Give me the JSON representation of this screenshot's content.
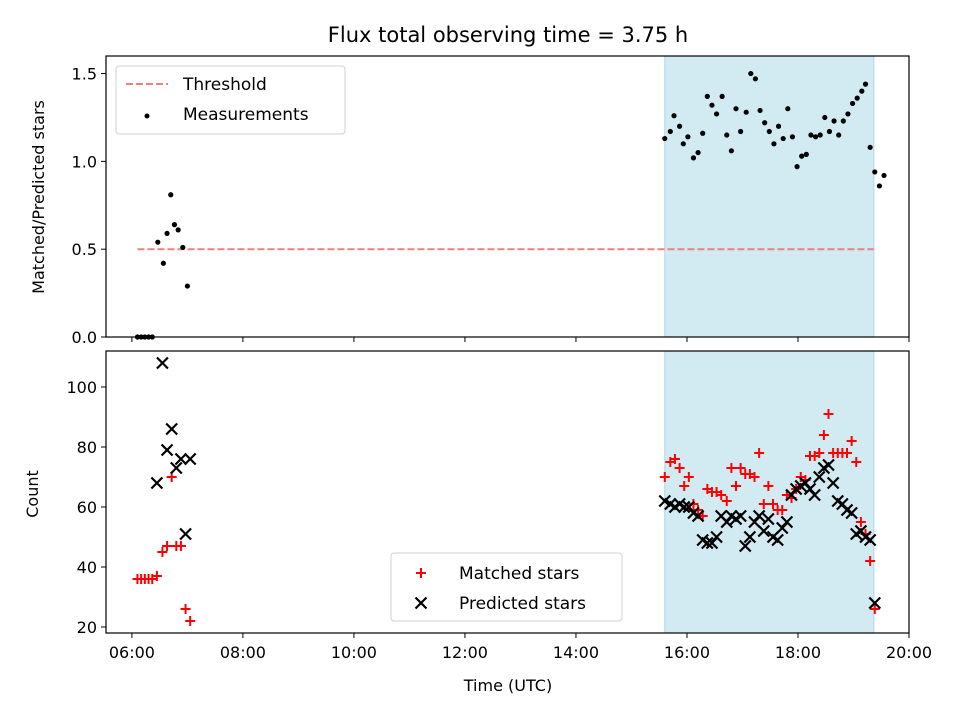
{
  "title": "Flux total observing time = 3.75 h",
  "colors": {
    "shade": "#add8e6",
    "threshold": "#f08080",
    "matched": "#ff0000",
    "predicted": "#000000"
  },
  "chart_data": [
    {
      "type": "scatter",
      "ylabel": "Matched/Predicted stars",
      "xlim": [
        "05:32",
        "20:00"
      ],
      "ylim": [
        0,
        1.6
      ],
      "yticks": [
        "0.0",
        "0.5",
        "1.0",
        "1.5"
      ],
      "shaded_region": [
        "15:36",
        "19:22"
      ],
      "legend": {
        "location": "upper-left",
        "threshold_label": "Threshold",
        "measurements_label": "Measurements"
      },
      "threshold": {
        "name": "Threshold",
        "value": 0.5,
        "x": [
          "06:06",
          "19:22"
        ]
      },
      "series": [
        {
          "name": "Measurements",
          "points": [
            [
              "06:06",
              0
            ],
            [
              "06:10",
              0
            ],
            [
              "06:14",
              0
            ],
            [
              "06:18",
              0
            ],
            [
              "06:22",
              0
            ],
            [
              "06:28",
              0.54
            ],
            [
              "06:34",
              0.42
            ],
            [
              "06:38",
              0.59
            ],
            [
              "06:42",
              0.81
            ],
            [
              "06:46",
              0.64
            ],
            [
              "06:50",
              0.61
            ],
            [
              "06:55",
              0.51
            ],
            [
              "07:00",
              0.29
            ],
            [
              "15:36",
              1.13
            ],
            [
              "15:42",
              1.17
            ],
            [
              "15:46",
              1.26
            ],
            [
              "15:52",
              1.2
            ],
            [
              "15:56",
              1.1
            ],
            [
              "16:01",
              1.14
            ],
            [
              "16:07",
              1.02
            ],
            [
              "16:12",
              1.05
            ],
            [
              "16:17",
              1.16
            ],
            [
              "16:22",
              1.37
            ],
            [
              "16:27",
              1.32
            ],
            [
              "16:32",
              1.27
            ],
            [
              "16:38",
              1.37
            ],
            [
              "16:43",
              1.15
            ],
            [
              "16:48",
              1.06
            ],
            [
              "16:53",
              1.3
            ],
            [
              "16:58",
              1.17
            ],
            [
              "17:04",
              1.28
            ],
            [
              "17:09",
              1.5
            ],
            [
              "17:14",
              1.47
            ],
            [
              "17:19",
              1.29
            ],
            [
              "17:24",
              1.22
            ],
            [
              "17:29",
              1.17
            ],
            [
              "17:34",
              1.1
            ],
            [
              "17:39",
              1.2
            ],
            [
              "17:44",
              1.13
            ],
            [
              "17:49",
              1.3
            ],
            [
              "17:54",
              1.14
            ],
            [
              "17:59",
              0.97
            ],
            [
              "18:04",
              1.03
            ],
            [
              "18:09",
              1.04
            ],
            [
              "18:14",
              1.15
            ],
            [
              "18:19",
              1.14
            ],
            [
              "18:24",
              1.15
            ],
            [
              "18:29",
              1.25
            ],
            [
              "18:34",
              1.17
            ],
            [
              "18:39",
              1.23
            ],
            [
              "18:44",
              1.15
            ],
            [
              "18:49",
              1.23
            ],
            [
              "18:54",
              1.27
            ],
            [
              "18:59",
              1.33
            ],
            [
              "19:04",
              1.36
            ],
            [
              "19:09",
              1.4
            ],
            [
              "19:13",
              1.44
            ],
            [
              "19:18",
              1.08
            ],
            [
              "19:23",
              0.94
            ],
            [
              "19:28",
              0.86
            ],
            [
              "19:33",
              0.92
            ]
          ]
        }
      ]
    },
    {
      "type": "scatter",
      "xlabel": "Time (UTC)",
      "ylabel": "Count",
      "xlim": [
        "05:32",
        "20:00"
      ],
      "ylim": [
        18,
        112
      ],
      "xticks": [
        "06:00",
        "08:00",
        "10:00",
        "12:00",
        "14:00",
        "16:00",
        "18:00",
        "20:00"
      ],
      "yticks": [
        "20",
        "40",
        "60",
        "80",
        "100"
      ],
      "shaded_region": [
        "15:36",
        "19:22"
      ],
      "legend": {
        "location": "lower-center",
        "matched_label": "Matched stars",
        "predicted_label": "Predicted stars"
      },
      "series": [
        {
          "name": "Matched stars",
          "points": [
            [
              "06:06",
              36
            ],
            [
              "06:10",
              36
            ],
            [
              "06:14",
              36
            ],
            [
              "06:18",
              36
            ],
            [
              "06:22",
              36
            ],
            [
              "06:27",
              37
            ],
            [
              "06:33",
              45
            ],
            [
              "06:38",
              47
            ],
            [
              "06:43",
              70
            ],
            [
              "06:48",
              47
            ],
            [
              "06:53",
              47
            ],
            [
              "06:58",
              26
            ],
            [
              "07:03",
              22
            ],
            [
              "15:36",
              70
            ],
            [
              "15:42",
              75
            ],
            [
              "15:47",
              76
            ],
            [
              "15:52",
              73
            ],
            [
              "15:57",
              67
            ],
            [
              "16:02",
              70
            ],
            [
              "16:07",
              61
            ],
            [
              "16:12",
              59
            ],
            [
              "16:17",
              57
            ],
            [
              "16:22",
              66
            ],
            [
              "16:27",
              65
            ],
            [
              "16:32",
              65
            ],
            [
              "16:37",
              64
            ],
            [
              "16:43",
              62
            ],
            [
              "16:48",
              73
            ],
            [
              "16:53",
              67
            ],
            [
              "16:58",
              73
            ],
            [
              "17:03",
              71
            ],
            [
              "17:08",
              71
            ],
            [
              "17:13",
              70
            ],
            [
              "17:18",
              78
            ],
            [
              "17:23",
              61
            ],
            [
              "17:28",
              67
            ],
            [
              "17:33",
              61
            ],
            [
              "17:38",
              59
            ],
            [
              "17:43",
              59
            ],
            [
              "17:48",
              64
            ],
            [
              "17:53",
              63
            ],
            [
              "17:58",
              66
            ],
            [
              "18:03",
              70
            ],
            [
              "18:08",
              69
            ],
            [
              "18:13",
              77
            ],
            [
              "18:18",
              77
            ],
            [
              "18:23",
              78
            ],
            [
              "18:28",
              84
            ],
            [
              "18:33",
              91
            ],
            [
              "18:38",
              78
            ],
            [
              "18:43",
              78
            ],
            [
              "18:48",
              78
            ],
            [
              "18:53",
              78
            ],
            [
              "18:58",
              82
            ],
            [
              "19:03",
              75
            ],
            [
              "19:08",
              55
            ],
            [
              "19:13",
              51
            ],
            [
              "19:18",
              42
            ],
            [
              "19:23",
              26
            ]
          ]
        },
        {
          "name": "Predicted stars",
          "points": [
            [
              "06:27",
              68
            ],
            [
              "06:33",
              108
            ],
            [
              "06:38",
              79
            ],
            [
              "06:43",
              86
            ],
            [
              "06:48",
              73
            ],
            [
              "06:53",
              76
            ],
            [
              "06:58",
              51
            ],
            [
              "07:03",
              76
            ],
            [
              "15:36",
              62
            ],
            [
              "15:42",
              61
            ],
            [
              "15:47",
              60
            ],
            [
              "15:52",
              61
            ],
            [
              "15:57",
              60
            ],
            [
              "16:02",
              60
            ],
            [
              "16:07",
              58
            ],
            [
              "16:12",
              57
            ],
            [
              "16:17",
              49
            ],
            [
              "16:22",
              48
            ],
            [
              "16:27",
              48
            ],
            [
              "16:32",
              50
            ],
            [
              "16:37",
              57
            ],
            [
              "16:43",
              55
            ],
            [
              "16:48",
              57
            ],
            [
              "16:53",
              56
            ],
            [
              "16:58",
              57
            ],
            [
              "17:03",
              47
            ],
            [
              "17:08",
              50
            ],
            [
              "17:13",
              55
            ],
            [
              "17:18",
              57
            ],
            [
              "17:23",
              52
            ],
            [
              "17:28",
              56
            ],
            [
              "17:33",
              50
            ],
            [
              "17:38",
              49
            ],
            [
              "17:43",
              53
            ],
            [
              "17:48",
              55
            ],
            [
              "17:53",
              64
            ],
            [
              "17:58",
              66
            ],
            [
              "18:03",
              67
            ],
            [
              "18:08",
              68
            ],
            [
              "18:13",
              66
            ],
            [
              "18:18",
              64
            ],
            [
              "18:23",
              70
            ],
            [
              "18:28",
              73
            ],
            [
              "18:33",
              74
            ],
            [
              "18:38",
              68
            ],
            [
              "18:43",
              62
            ],
            [
              "18:48",
              61
            ],
            [
              "18:53",
              59
            ],
            [
              "18:58",
              58
            ],
            [
              "19:03",
              51
            ],
            [
              "19:08",
              52
            ],
            [
              "19:13",
              50
            ],
            [
              "19:18",
              49
            ],
            [
              "19:23",
              28
            ]
          ]
        }
      ]
    }
  ]
}
